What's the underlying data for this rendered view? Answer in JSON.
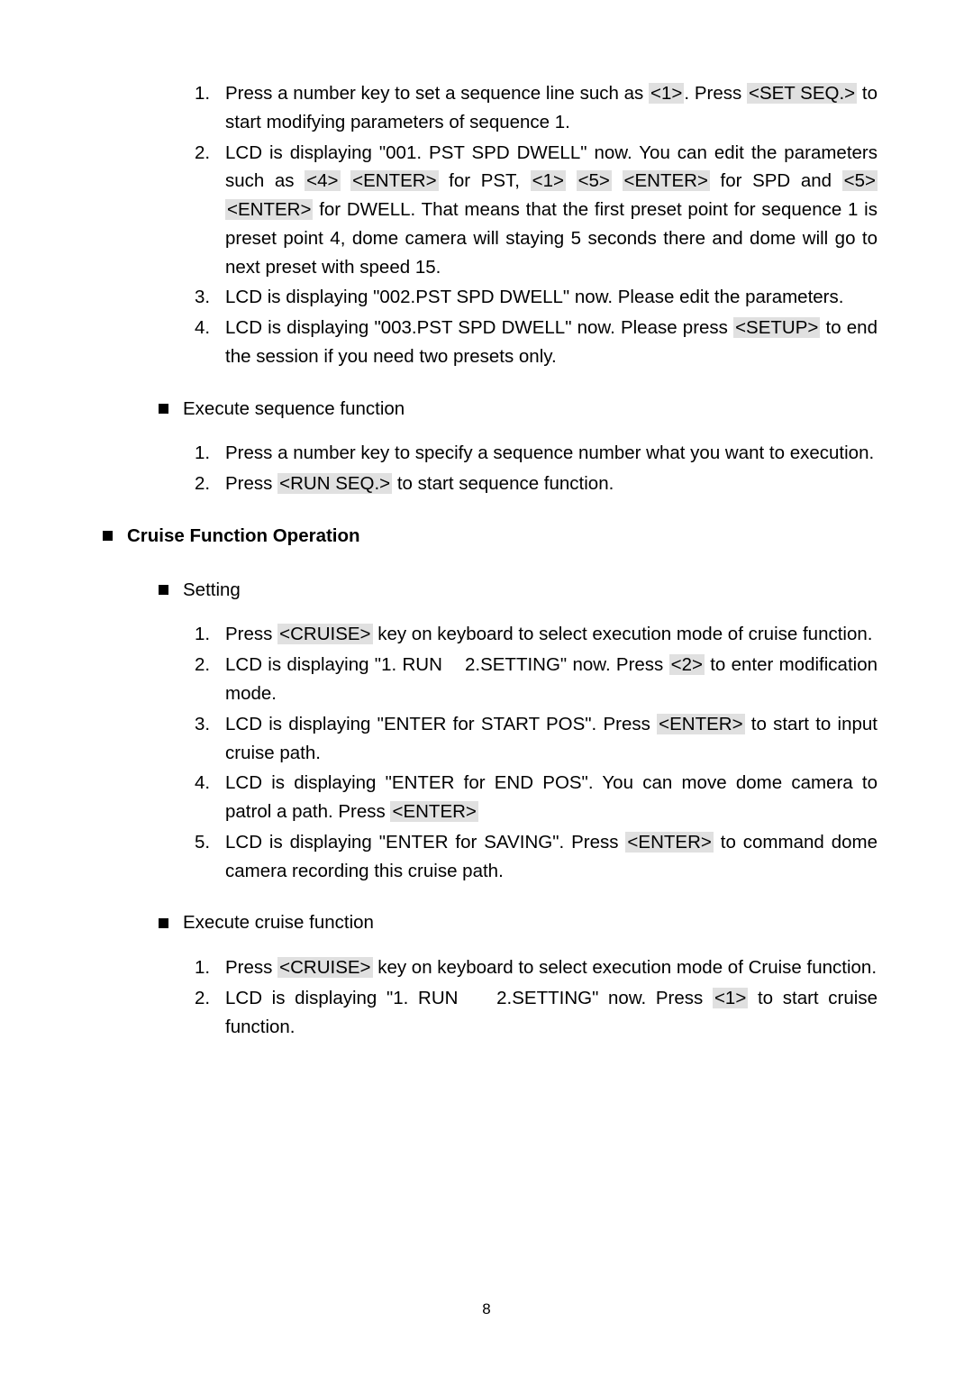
{
  "seq_setting": {
    "items": [
      {
        "n": "1.",
        "pre": "Press a number key to set a sequence line such as ",
        "k1": "<1>",
        "mid1": ". Press ",
        "k2": "<SET SEQ.>",
        "post": " to start modifying parameters of sequence 1."
      },
      {
        "n": "2.",
        "pre": "LCD is displaying \"001. PST SPD DWELL\" now. You can edit the parameters such as ",
        "k1": "<4>",
        "mid1": " ",
        "k2": "<ENTER>",
        "mid2": " for PST, ",
        "k3": "<1>",
        "mid3": " ",
        "k4": "<5>",
        "mid4": " ",
        "k5": "<ENTER>",
        "mid5": " for SPD and ",
        "k6": "<5>",
        "mid6": " ",
        "k7": "<ENTER>",
        "post": " for DWELL. That means that the first preset point for sequence 1 is preset point 4, dome camera will staying 5 seconds there and dome will go to next preset with speed 15."
      },
      {
        "n": "3.",
        "plain": "LCD is displaying \"002.PST SPD DWELL\" now. Please edit the parameters."
      },
      {
        "n": "4.",
        "pre": "LCD is displaying \"003.PST SPD DWELL\" now. Please press ",
        "k1": "<SETUP>",
        "post": " to end the session if you need two presets only."
      }
    ]
  },
  "exec_seq": {
    "title": "Execute sequence function",
    "items": [
      {
        "n": "1.",
        "plain": "Press a number key to specify a sequence number what you want to execution."
      },
      {
        "n": "2.",
        "pre": "Press ",
        "k1": "<RUN SEQ.>",
        "post": " to start sequence function."
      }
    ]
  },
  "cruise": {
    "title": "Cruise Function Operation",
    "setting": {
      "title": "Setting",
      "items": [
        {
          "n": "1.",
          "pre": "Press ",
          "k1": "<CRUISE>",
          "post": " key on keyboard to select execution mode of cruise function."
        },
        {
          "n": "2.",
          "pre": "LCD is displaying \"1. RUN    2.SETTING\" now. Press ",
          "k1": "<2>",
          "post": " to enter modification mode."
        },
        {
          "n": "3.",
          "pre": "LCD is displaying \"ENTER for START POS\". Press ",
          "k1": "<ENTER>",
          "post": " to start to input cruise path."
        },
        {
          "n": "4.",
          "pre": "LCD is displaying \"ENTER for END POS\". You can move dome camera to patrol a path. Press ",
          "k1": "<ENTER>",
          "post": ""
        },
        {
          "n": "5.",
          "pre": "LCD is displaying \"ENTER for SAVING\". Press ",
          "k1": "<ENTER>",
          "post": " to command dome camera recording this cruise path."
        }
      ]
    },
    "exec": {
      "title": "Execute cruise function",
      "items": [
        {
          "n": "1.",
          "pre": "Press ",
          "k1": "<CRUISE>",
          "post": " key on keyboard to select execution mode of Cruise function."
        },
        {
          "n": "2.",
          "pre": "LCD is displaying \"1. RUN    2.SETTING\" now. Press ",
          "k1": "<1>",
          "post": " to start cruise function."
        }
      ]
    }
  },
  "page_number": "8"
}
